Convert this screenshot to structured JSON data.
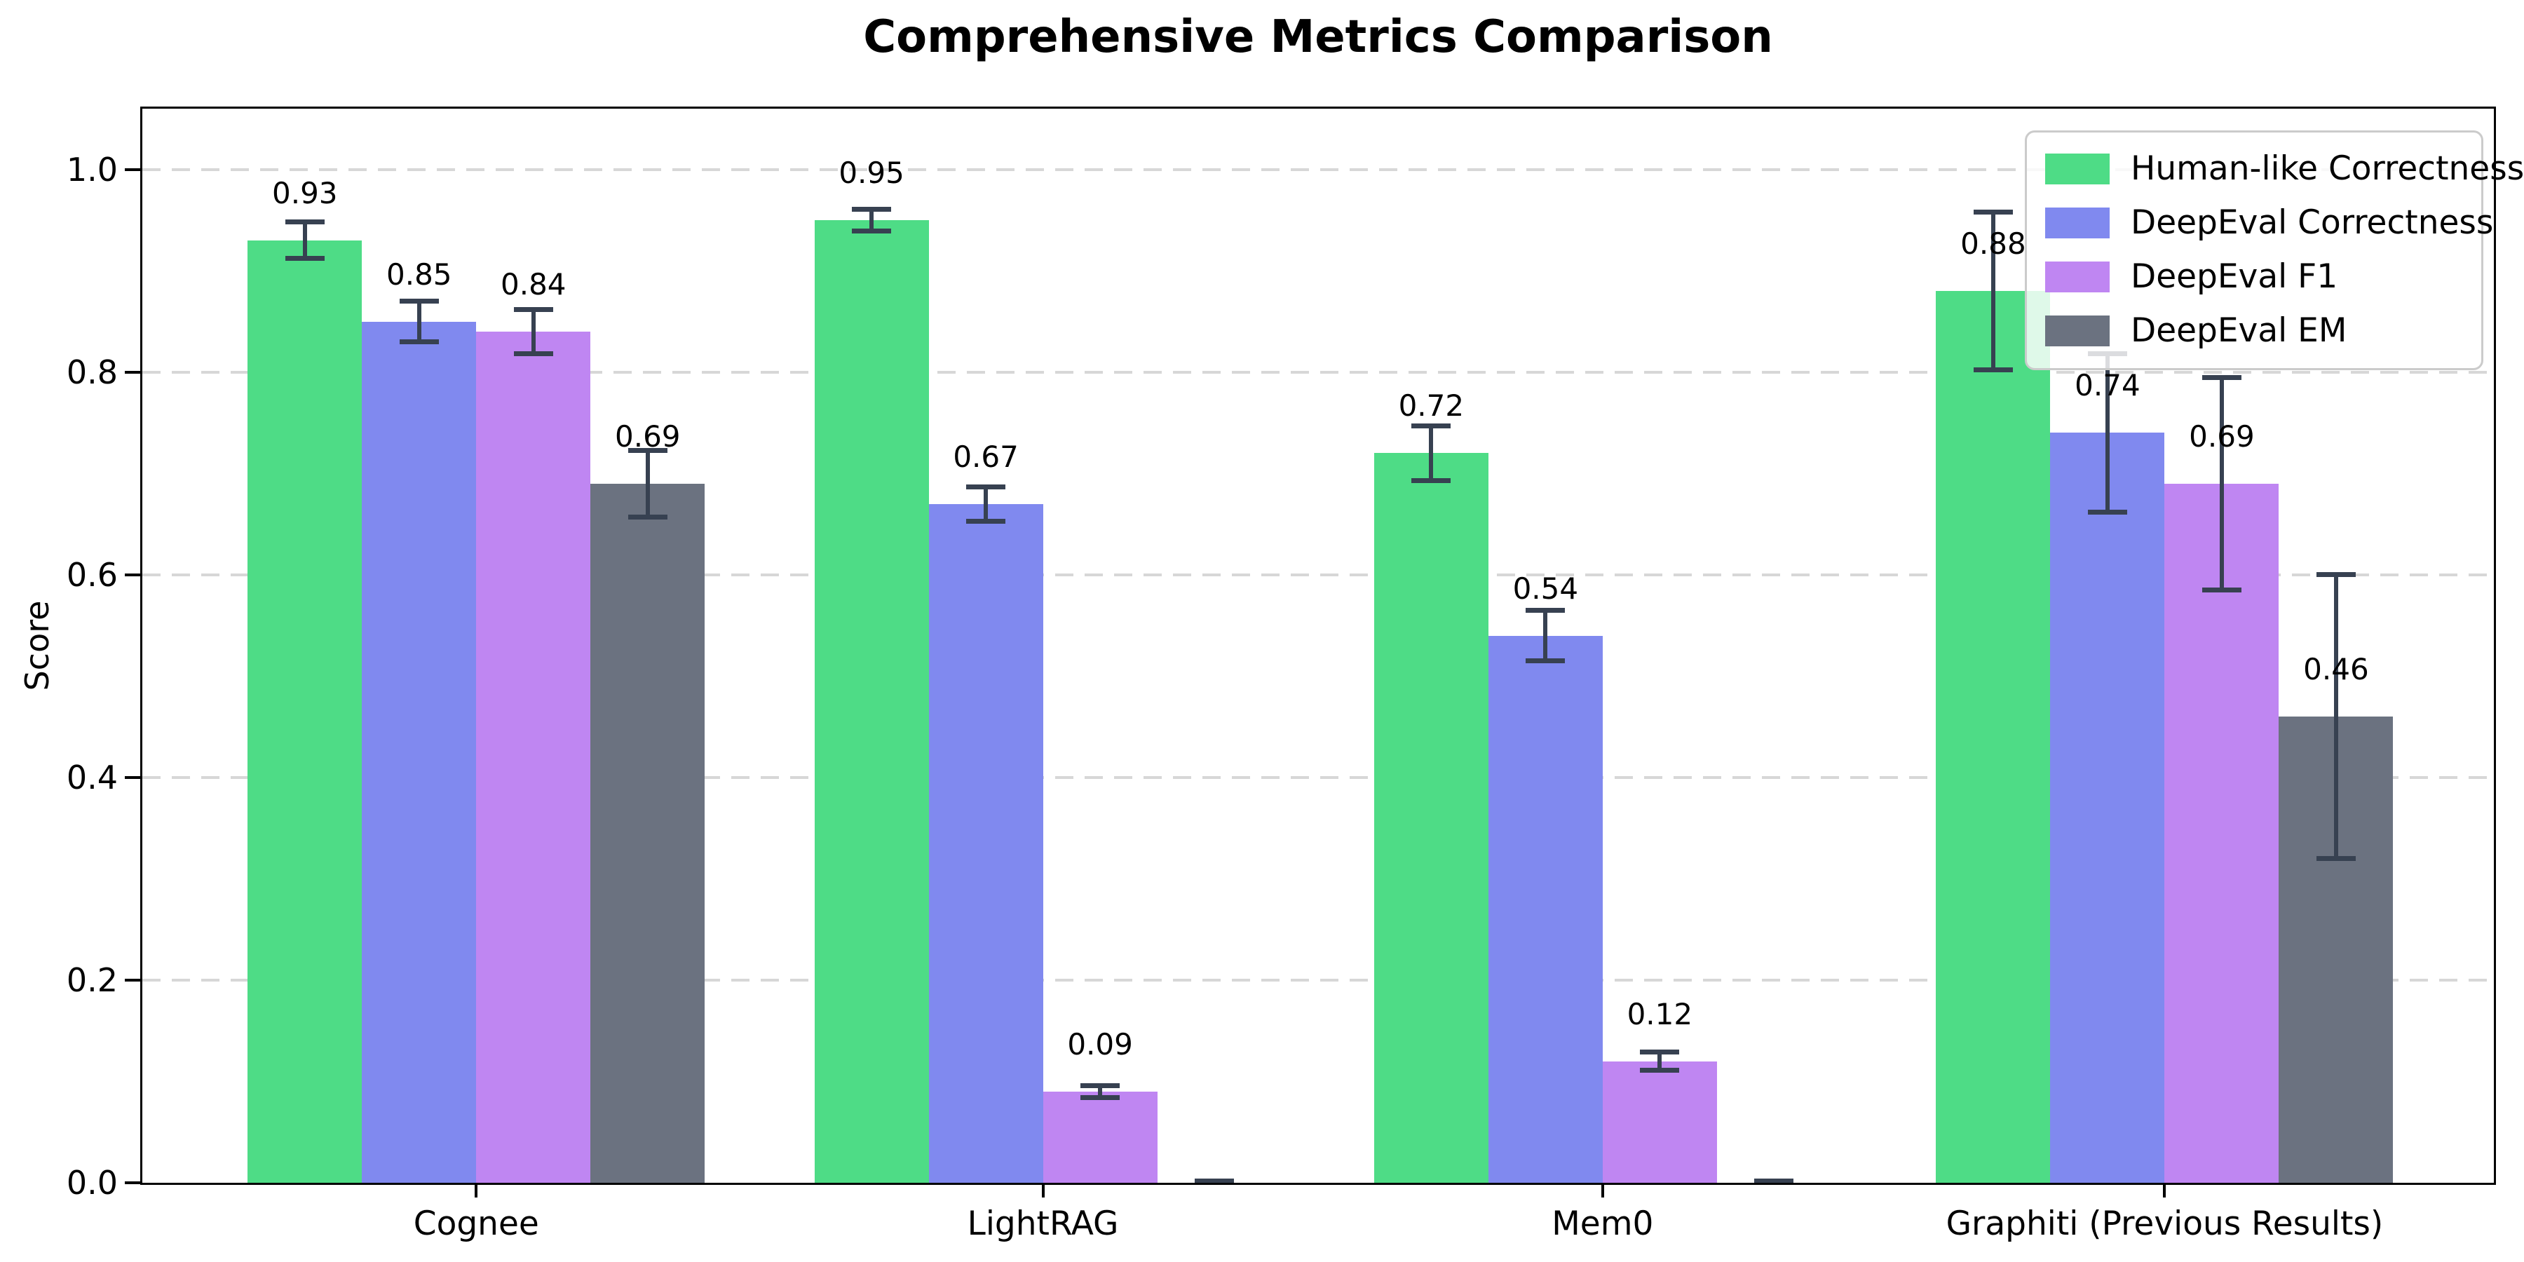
{
  "chart_data": {
    "type": "bar",
    "title": "Comprehensive Metrics Comparison",
    "ylabel": "Score",
    "xlabel": "",
    "categories": [
      "Cognee",
      "LightRAG",
      "Mem0",
      "Graphiti (Previous Results)"
    ],
    "series": [
      {
        "name": "Human-like Correctness",
        "color": "#4edc86",
        "values": [
          0.93,
          0.95,
          0.72,
          0.88
        ],
        "errors": [
          0.018,
          0.011,
          0.027,
          0.078
        ],
        "labels": [
          "0.93",
          "0.95",
          "0.72",
          "0.88"
        ]
      },
      {
        "name": "DeepEval Correctness",
        "color": "#8089ef",
        "values": [
          0.85,
          0.67,
          0.54,
          0.74
        ],
        "errors": [
          0.02,
          0.017,
          0.025,
          0.078
        ],
        "labels": [
          "0.85",
          "0.67",
          "0.54",
          "0.74"
        ]
      },
      {
        "name": "DeepEval F1",
        "color": "#bf86f2",
        "values": [
          0.84,
          0.09,
          0.12,
          0.69
        ],
        "errors": [
          0.022,
          0.006,
          0.009,
          0.105
        ],
        "labels": [
          "0.84",
          "0.09",
          "0.12",
          "0.69"
        ]
      },
      {
        "name": "DeepEval EM",
        "color": "#6b7280",
        "values": [
          0.69,
          0.0,
          0.0,
          0.46
        ],
        "errors": [
          0.033,
          0.002,
          0.002,
          0.14
        ],
        "labels": [
          "0.69",
          "",
          "",
          "0.46"
        ]
      }
    ],
    "yticks": [
      "0.0",
      "0.2",
      "0.4",
      "0.6",
      "0.8",
      "1.0"
    ],
    "ylim": [
      0,
      1.06
    ],
    "grid": "horizontal-dashed",
    "legend_position": "upper right",
    "colors": {
      "error_bar": "#374151",
      "gridline": "#d7d7d7",
      "spine": "#000000",
      "legend_border": "#cbcbcb",
      "background": "#ffffff"
    }
  }
}
